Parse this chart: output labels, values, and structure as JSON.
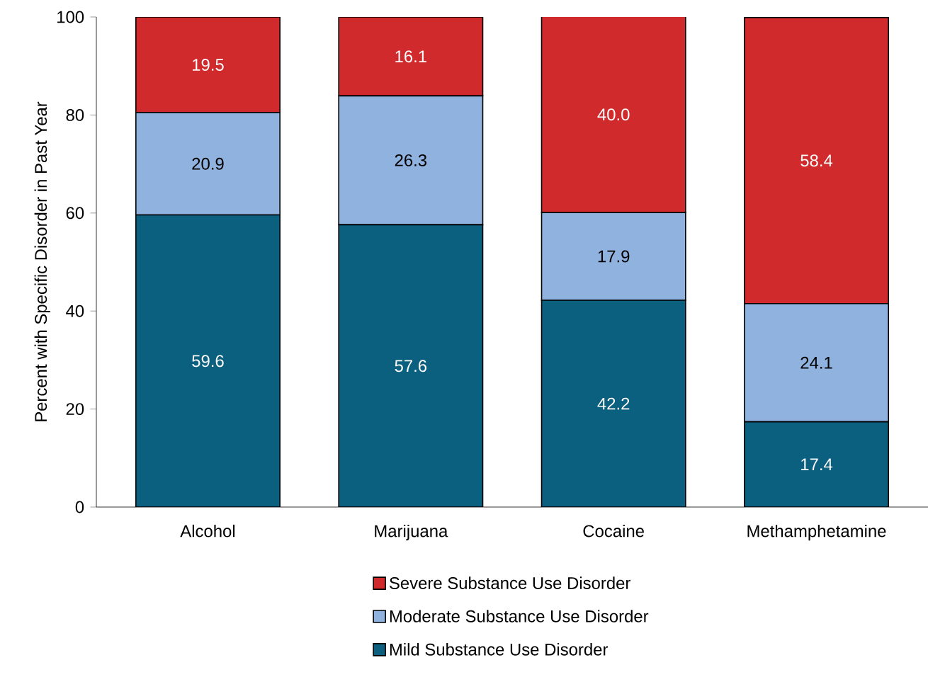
{
  "chart_data": {
    "type": "bar",
    "stacked": true,
    "ylabel": "Percent with Specific Disorder in Past Year",
    "categories": [
      "Alcohol",
      "Marijuana",
      "Cocaine",
      "Methamphetamine"
    ],
    "series": [
      {
        "name": "Mild Substance Use Disorder",
        "color": "#0b5f7f",
        "values": [
          59.6,
          57.6,
          42.2,
          17.4
        ],
        "value_labels": [
          "59.6",
          "57.6",
          "42.2",
          "17.4"
        ]
      },
      {
        "name": "Moderate Substance Use Disorder",
        "color": "#8fb2de",
        "values": [
          20.9,
          26.3,
          17.9,
          24.1
        ],
        "value_labels": [
          "20.9",
          "26.3",
          "17.9",
          "24.1"
        ]
      },
      {
        "name": "Severe Substance Use Disorder",
        "color": "#d02a2c",
        "values": [
          19.5,
          16.1,
          40.0,
          58.4
        ],
        "value_labels": [
          "19.5",
          "16.1",
          "40.0",
          "58.4"
        ]
      }
    ],
    "ylim": [
      0,
      100
    ],
    "yticks": [
      0,
      20,
      40,
      60,
      80,
      100
    ],
    "grid": false,
    "legend": "bottom"
  }
}
